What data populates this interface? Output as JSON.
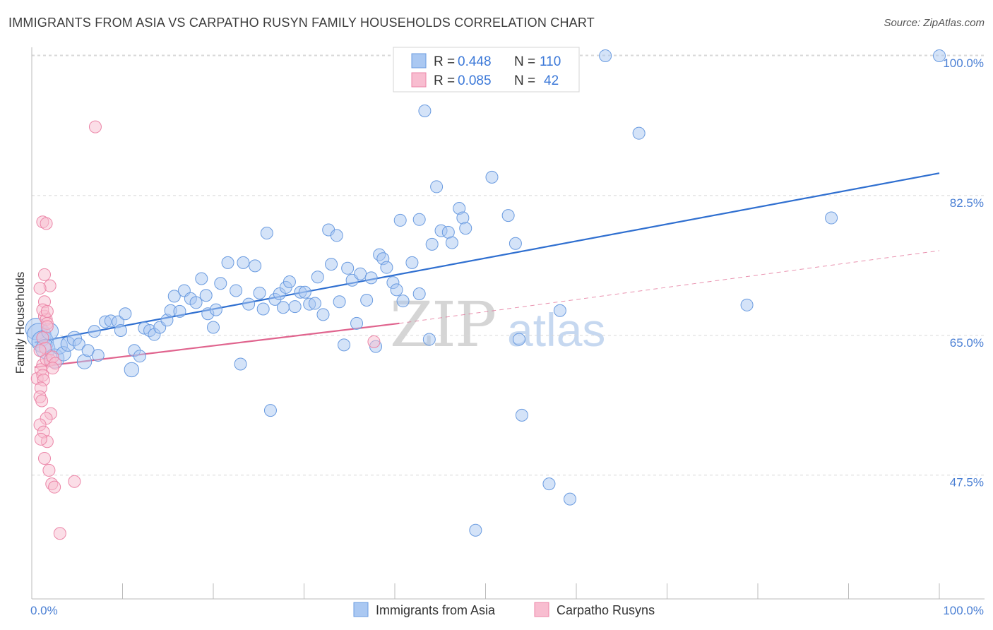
{
  "title": "IMMIGRANTS FROM ASIA VS CARPATHO RUSYN FAMILY HOUSEHOLDS CORRELATION CHART",
  "source": "Source: ZipAtlas.com",
  "watermark": {
    "part1": "ZIP",
    "part2": "atlas"
  },
  "colors": {
    "blue_fill": "#aac8f2",
    "blue_stroke": "#6a9be0",
    "blue_line": "#2f6fd0",
    "pink_fill": "#f8bdd0",
    "pink_stroke": "#ec86a8",
    "pink_line": "#e0648e",
    "grid": "#d8d8d8",
    "tick_label": "#4a7fd4"
  },
  "legend": {
    "rows": [
      {
        "r_label": "R = ",
        "r_value": "0.448",
        "n_label": "N = ",
        "n_value": "110"
      },
      {
        "r_label": "R = ",
        "r_value": "0.085",
        "n_label": "N = ",
        "n_value": "42"
      }
    ]
  },
  "chart_data": {
    "type": "scatter",
    "xlabel": "",
    "ylabel": "Family Households",
    "xlim": [
      0,
      100
    ],
    "ylim": [
      32,
      101.5
    ],
    "x_tick_labels": [
      "0.0%",
      "100.0%"
    ],
    "y_ticks": [
      47.5,
      65.0,
      82.5,
      100.0
    ],
    "y_tick_labels": [
      "47.5%",
      "65.0%",
      "82.5%",
      "100.0%"
    ],
    "grid": true,
    "series": [
      {
        "name": "Immigrants from Asia",
        "trend": {
          "x": [
            0.3,
            100
          ],
          "y": [
            64.1,
            85.3
          ]
        },
        "points": [
          [
            0.5,
            65.8,
            18
          ],
          [
            0.8,
            65.0,
            20
          ],
          [
            1.2,
            64.2,
            18
          ],
          [
            1.5,
            63.3,
            16
          ],
          [
            2.0,
            65.5,
            14
          ],
          [
            2.5,
            62.1,
            16
          ],
          [
            3.0,
            63.7,
            14
          ],
          [
            3.5,
            62.7,
            12
          ],
          [
            4.0,
            63.9,
            12
          ],
          [
            4.7,
            64.6,
            12
          ],
          [
            5.2,
            63.9,
            10
          ],
          [
            5.8,
            61.7,
            12
          ],
          [
            6.2,
            63.1,
            10
          ],
          [
            7.3,
            62.5,
            10
          ],
          [
            6.9,
            65.5,
            10
          ],
          [
            8.1,
            66.7,
            10
          ],
          [
            8.7,
            66.8,
            10
          ],
          [
            9.5,
            66.7,
            10
          ],
          [
            9.8,
            65.6,
            10
          ],
          [
            10.3,
            67.7,
            10
          ],
          [
            11.0,
            60.7,
            12
          ],
          [
            11.3,
            63.1,
            10
          ],
          [
            11.9,
            62.4,
            10
          ],
          [
            12.4,
            65.9,
            10
          ],
          [
            13.0,
            65.6,
            10
          ],
          [
            13.5,
            65.1,
            10
          ],
          [
            14.1,
            66.0,
            10
          ],
          [
            14.9,
            66.9,
            10
          ],
          [
            15.3,
            68.1,
            10
          ],
          [
            15.7,
            69.9,
            10
          ],
          [
            16.3,
            68.0,
            10
          ],
          [
            16.8,
            70.6,
            10
          ],
          [
            17.5,
            69.6,
            10
          ],
          [
            18.1,
            69.1,
            10
          ],
          [
            18.7,
            72.1,
            10
          ],
          [
            19.2,
            70.0,
            10
          ],
          [
            19.4,
            67.7,
            10
          ],
          [
            20.0,
            66.0,
            10
          ],
          [
            20.3,
            68.2,
            10
          ],
          [
            20.8,
            71.5,
            10
          ],
          [
            21.6,
            74.1,
            10
          ],
          [
            22.5,
            70.6,
            10
          ],
          [
            23.0,
            61.4,
            10
          ],
          [
            23.3,
            74.1,
            10
          ],
          [
            23.9,
            68.9,
            10
          ],
          [
            24.6,
            73.7,
            10
          ],
          [
            25.1,
            70.3,
            10
          ],
          [
            25.5,
            68.3,
            10
          ],
          [
            25.9,
            77.8,
            10
          ],
          [
            26.3,
            55.6,
            10
          ],
          [
            26.8,
            69.5,
            10
          ],
          [
            27.3,
            70.2,
            10
          ],
          [
            27.7,
            68.5,
            10
          ],
          [
            28.0,
            71.0,
            10
          ],
          [
            28.4,
            71.7,
            10
          ],
          [
            29.0,
            68.6,
            10
          ],
          [
            29.6,
            70.4,
            10
          ],
          [
            30.1,
            70.4,
            10
          ],
          [
            30.6,
            68.9,
            10
          ],
          [
            31.2,
            69.0,
            10
          ],
          [
            31.5,
            72.3,
            10
          ],
          [
            32.1,
            67.6,
            10
          ],
          [
            32.7,
            78.2,
            10
          ],
          [
            33.0,
            73.9,
            10
          ],
          [
            33.6,
            77.5,
            10
          ],
          [
            33.9,
            69.2,
            10
          ],
          [
            34.4,
            63.8,
            10
          ],
          [
            34.8,
            73.4,
            10
          ],
          [
            35.3,
            71.9,
            10
          ],
          [
            35.8,
            66.5,
            10
          ],
          [
            36.2,
            72.7,
            10
          ],
          [
            36.9,
            69.4,
            10
          ],
          [
            37.4,
            72.2,
            10
          ],
          [
            37.9,
            63.6,
            10
          ],
          [
            38.3,
            75.1,
            10
          ],
          [
            38.7,
            74.6,
            10
          ],
          [
            39.1,
            73.5,
            10
          ],
          [
            39.8,
            71.6,
            10
          ],
          [
            40.2,
            70.7,
            10
          ],
          [
            40.6,
            79.4,
            10
          ],
          [
            40.9,
            69.3,
            10
          ],
          [
            41.9,
            74.1,
            10
          ],
          [
            42.7,
            79.5,
            10
          ],
          [
            42.7,
            70.2,
            10
          ],
          [
            43.3,
            93.1,
            10
          ],
          [
            43.8,
            64.5,
            10
          ],
          [
            44.1,
            76.4,
            10
          ],
          [
            44.6,
            83.6,
            10
          ],
          [
            45.1,
            78.1,
            10
          ],
          [
            45.9,
            77.9,
            10
          ],
          [
            46.3,
            76.6,
            10
          ],
          [
            47.1,
            80.9,
            10
          ],
          [
            47.5,
            79.7,
            10
          ],
          [
            47.8,
            78.4,
            10
          ],
          [
            48.9,
            40.6,
            10
          ],
          [
            50.7,
            84.8,
            10
          ],
          [
            52.5,
            80.0,
            10
          ],
          [
            53.3,
            76.5,
            10
          ],
          [
            53.7,
            64.5,
            10
          ],
          [
            54.0,
            55.0,
            10
          ],
          [
            57.0,
            46.4,
            10
          ],
          [
            58.2,
            68.1,
            10
          ],
          [
            59.3,
            44.5,
            10
          ],
          [
            63.2,
            100.0,
            10
          ],
          [
            66.9,
            90.3,
            10
          ],
          [
            78.8,
            68.8,
            10
          ],
          [
            88.1,
            79.7,
            10
          ],
          [
            100.0,
            100.0,
            10
          ]
        ]
      },
      {
        "name": "Carpatho Rusyns",
        "trend": {
          "x": [
            0.3,
            40.5
          ],
          "y": [
            61.0,
            66.5
          ]
        },
        "trend_extension": {
          "x": [
            40.5,
            100
          ],
          "y": [
            66.5,
            75.6
          ]
        },
        "points": [
          [
            0.6,
            59.6,
            10
          ],
          [
            1.2,
            61.3,
            10
          ],
          [
            1.6,
            62.0,
            10
          ],
          [
            1.0,
            60.7,
            10
          ],
          [
            2.0,
            61.9,
            10
          ],
          [
            1.4,
            67.4,
            10
          ],
          [
            1.6,
            67.0,
            10
          ],
          [
            1.2,
            64.7,
            10
          ],
          [
            1.7,
            66.5,
            10
          ],
          [
            1.5,
            63.4,
            10
          ],
          [
            0.9,
            63.1,
            10
          ],
          [
            1.2,
            60.0,
            10
          ],
          [
            1.3,
            59.4,
            10
          ],
          [
            1.0,
            58.4,
            10
          ],
          [
            0.9,
            57.3,
            10
          ],
          [
            1.1,
            56.8,
            10
          ],
          [
            2.1,
            55.2,
            10
          ],
          [
            1.6,
            54.6,
            10
          ],
          [
            0.9,
            53.8,
            10
          ],
          [
            1.3,
            52.9,
            10
          ],
          [
            1.7,
            51.7,
            10
          ],
          [
            1.0,
            52.0,
            10
          ],
          [
            1.4,
            49.6,
            10
          ],
          [
            1.9,
            48.1,
            10
          ],
          [
            2.2,
            46.4,
            10
          ],
          [
            2.5,
            46.0,
            10
          ],
          [
            1.2,
            79.2,
            10
          ],
          [
            1.6,
            79.0,
            10
          ],
          [
            1.4,
            72.6,
            10
          ],
          [
            2.0,
            71.2,
            10
          ],
          [
            0.9,
            70.9,
            10
          ],
          [
            1.4,
            69.2,
            10
          ],
          [
            1.2,
            68.2,
            10
          ],
          [
            1.7,
            68.0,
            10
          ],
          [
            1.7,
            66.1,
            10
          ],
          [
            2.3,
            62.3,
            10
          ],
          [
            2.6,
            61.5,
            10
          ],
          [
            2.3,
            60.9,
            10
          ],
          [
            3.1,
            40.2,
            10
          ],
          [
            4.7,
            46.7,
            10
          ],
          [
            7.0,
            91.1,
            10
          ],
          [
            37.7,
            64.2,
            10
          ]
        ]
      }
    ]
  },
  "bottom_legend": [
    "Immigrants from Asia",
    "Carpatho Rusyns"
  ]
}
